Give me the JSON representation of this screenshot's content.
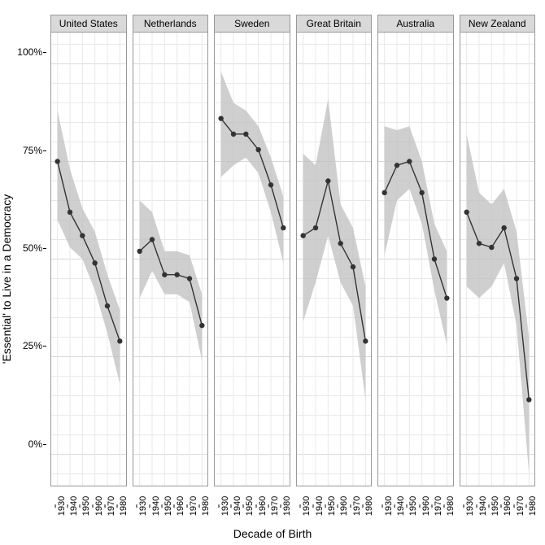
{
  "chart": {
    "type": "line-facet",
    "y_axis_title": "'Essential' to Live in a Democracy",
    "x_axis_title": "Decade of Birth",
    "ylim": [
      -8,
      108
    ],
    "yticks": [
      0,
      25,
      50,
      75,
      100
    ],
    "ytick_labels": [
      "0%",
      "25%",
      "50%",
      "75%",
      "100%"
    ],
    "xticks": [
      1930,
      1940,
      1950,
      1960,
      1970,
      1980
    ],
    "xtick_labels": [
      "1930",
      "1940",
      "1950",
      "1960",
      "1970",
      "1980"
    ],
    "xlim": [
      1925,
      1985
    ],
    "background_color": "#ffffff",
    "grid_color": "#e8e8e8",
    "grid_major_color": "#d8d8d8",
    "facet_header_bg": "#d9d9d9",
    "line_color": "#333333",
    "line_width": 1.4,
    "marker_size": 3.2,
    "marker_color": "#333333",
    "ribbon_color": "#bfbfbf",
    "ribbon_opacity": 0.75,
    "facets": [
      {
        "label": "United States",
        "x": [
          1930,
          1940,
          1950,
          1960,
          1970,
          1980
        ],
        "y": [
          75,
          62,
          56,
          49,
          38,
          29
        ],
        "y_low": [
          60,
          53,
          50,
          42,
          31,
          18
        ],
        "y_high": [
          88,
          73,
          63,
          57,
          46,
          37
        ]
      },
      {
        "label": "Netherlands",
        "x": [
          1930,
          1940,
          1950,
          1960,
          1970,
          1980
        ],
        "y": [
          52,
          55,
          46,
          46,
          45,
          33
        ],
        "y_low": [
          40,
          47,
          41,
          41,
          39,
          24
        ],
        "y_high": [
          65,
          62,
          52,
          52,
          51,
          41
        ]
      },
      {
        "label": "Sweden",
        "x": [
          1930,
          1940,
          1950,
          1960,
          1970,
          1980
        ],
        "y": [
          86,
          82,
          82,
          78,
          69,
          58
        ],
        "y_low": [
          71,
          74,
          76,
          72,
          62,
          49
        ],
        "y_high": [
          98,
          90,
          88,
          84,
          76,
          66
        ]
      },
      {
        "label": "Great Britain",
        "x": [
          1930,
          1940,
          1950,
          1960,
          1970,
          1980
        ],
        "y": [
          56,
          58,
          70,
          54,
          48,
          29
        ],
        "y_low": [
          34,
          44,
          56,
          44,
          38,
          14
        ],
        "y_high": [
          77,
          74,
          91,
          64,
          58,
          43
        ]
      },
      {
        "label": "Australia",
        "x": [
          1930,
          1940,
          1950,
          1960,
          1970,
          1980
        ],
        "y": [
          67,
          74,
          75,
          67,
          50,
          40
        ],
        "y_low": [
          51,
          65,
          68,
          59,
          42,
          28
        ],
        "y_high": [
          84,
          83,
          84,
          75,
          59,
          52
        ]
      },
      {
        "label": "New Zealand",
        "x": [
          1930,
          1940,
          1950,
          1960,
          1970,
          1980
        ],
        "y": [
          62,
          54,
          53,
          58,
          45,
          14
        ],
        "y_low": [
          43,
          40,
          43,
          49,
          33,
          -5
        ],
        "y_high": [
          82,
          67,
          64,
          68,
          57,
          30
        ]
      }
    ]
  }
}
